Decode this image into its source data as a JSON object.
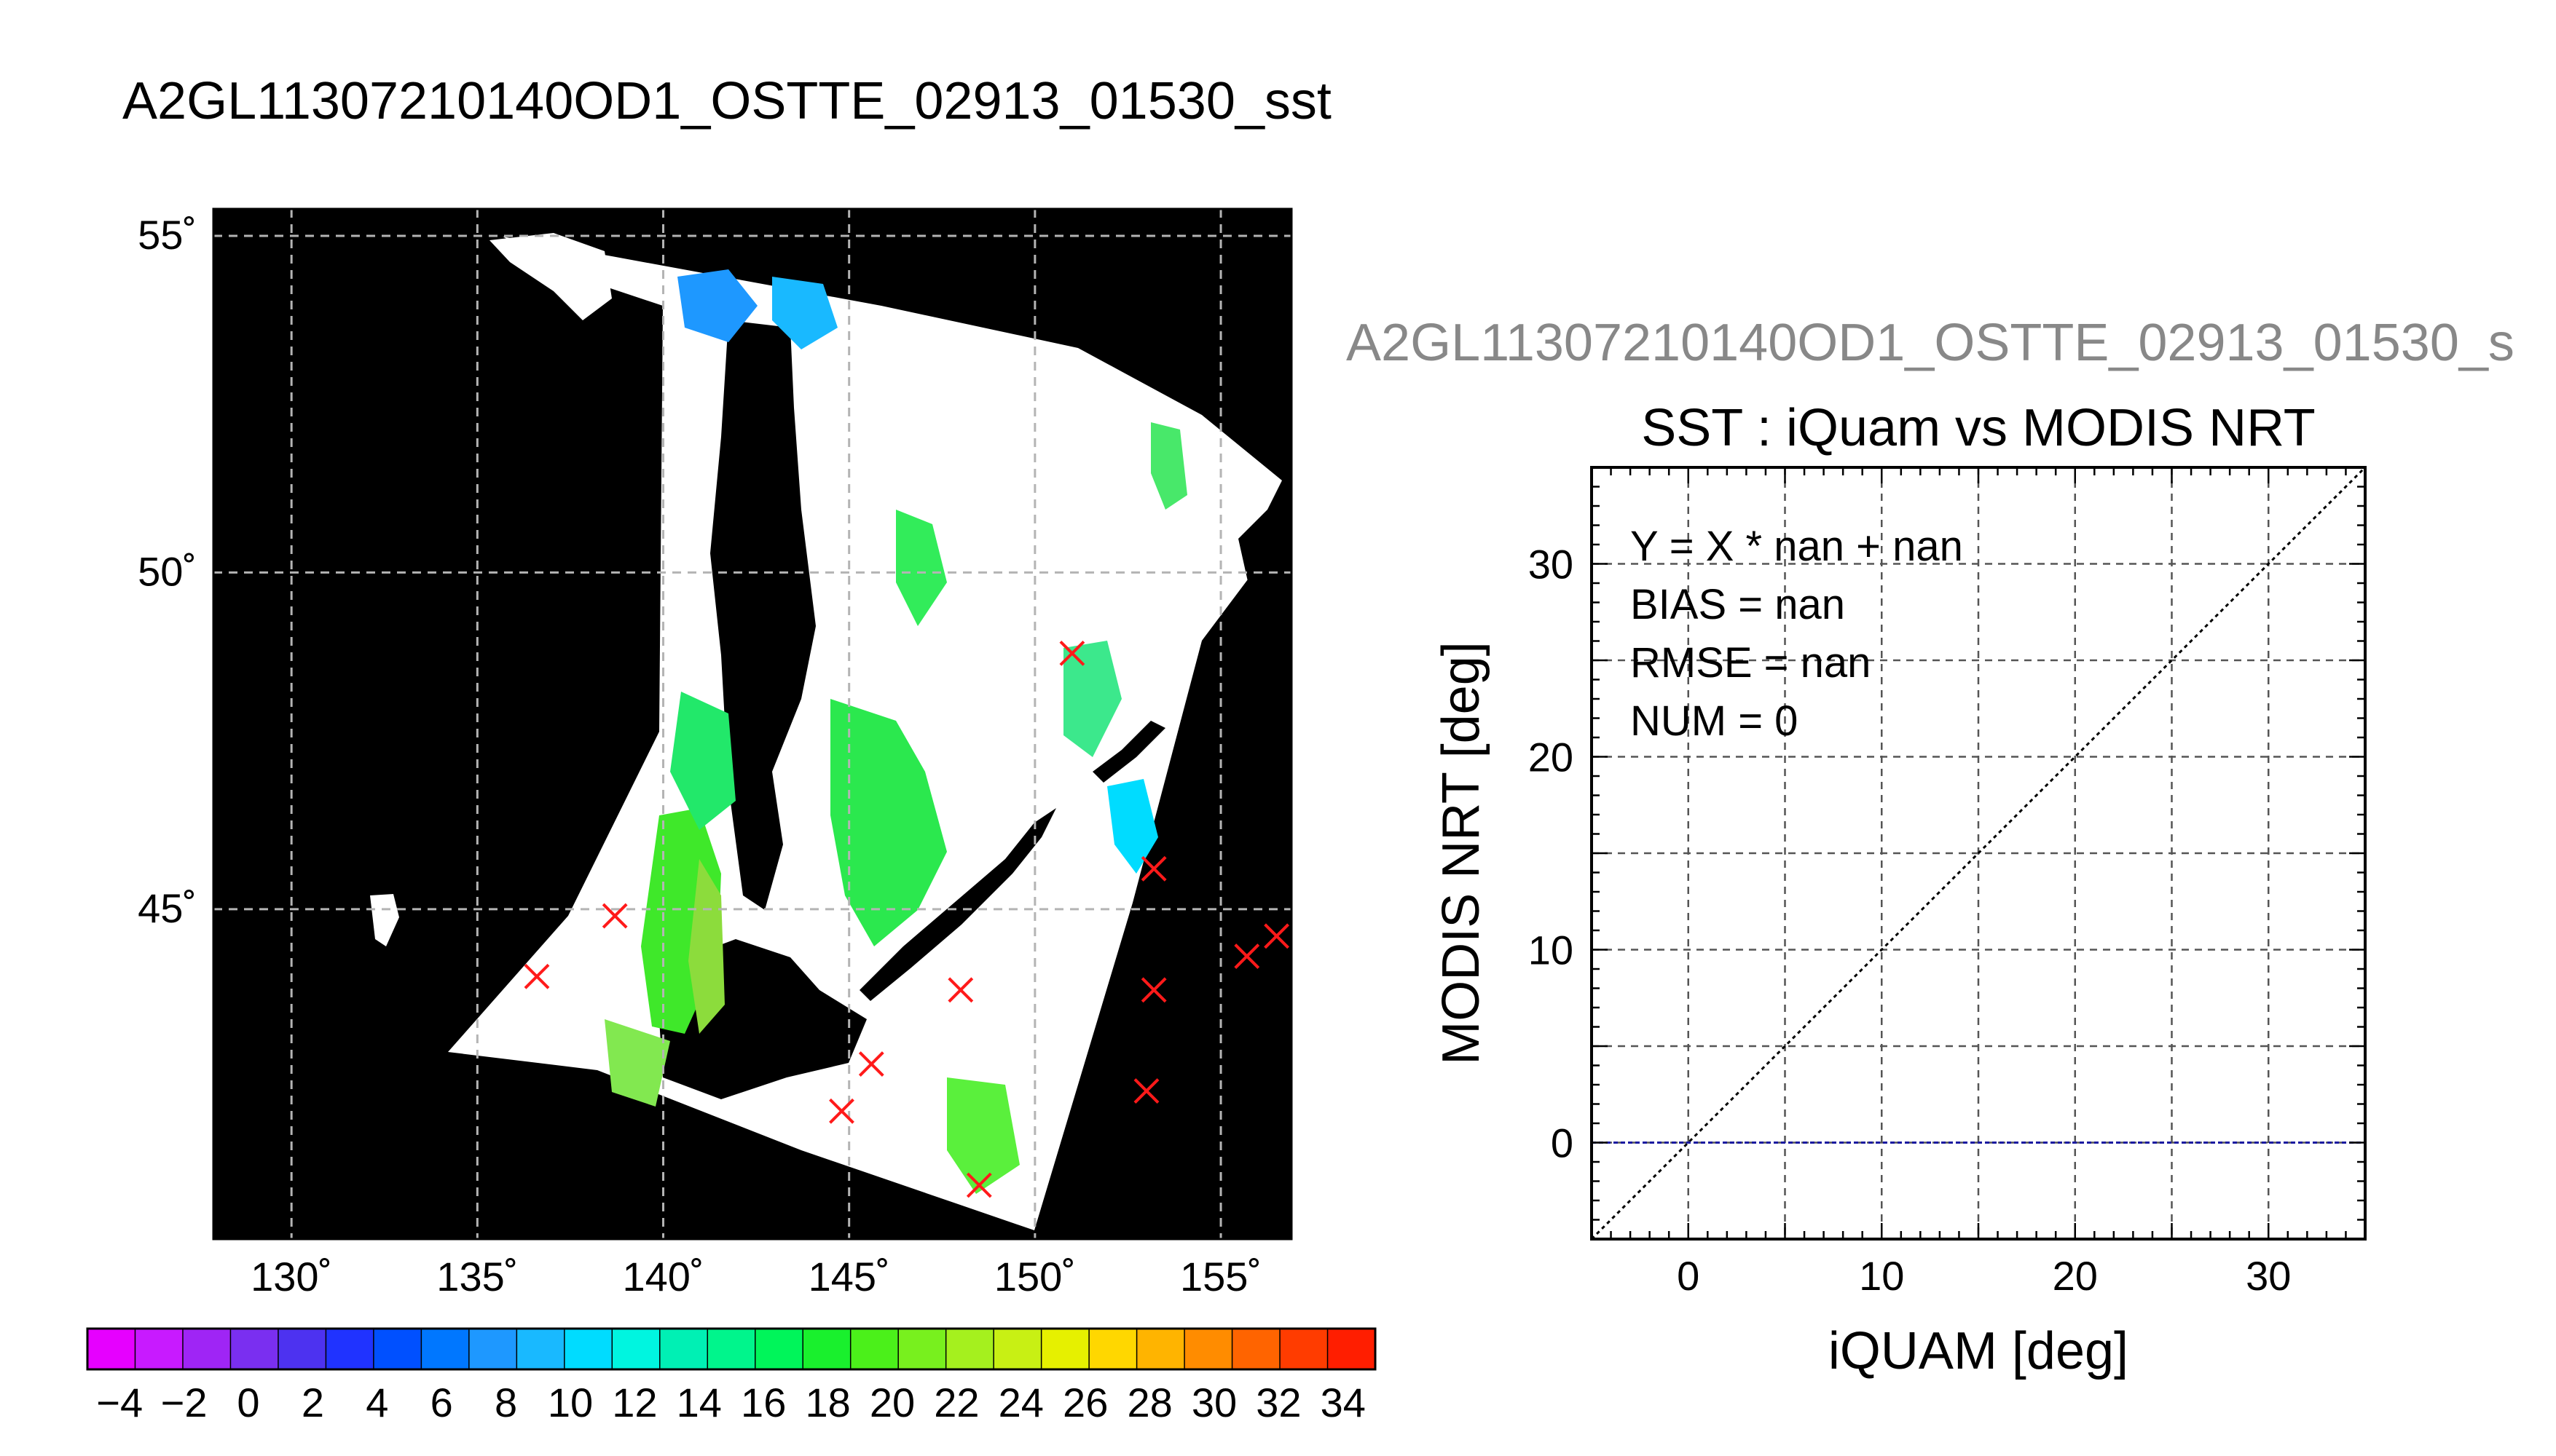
{
  "page_title": "A2GL11307210140OD1_OSTTE_02913_01530_sst",
  "chart_data": [
    {
      "type": "heatmap",
      "title": "A2GL11307210140OD1_OSTTE_02913_01530_sst",
      "xlabel": "",
      "ylabel": "",
      "lon_ticks": [
        "130˚",
        "135˚",
        "140˚",
        "145˚",
        "150˚",
        "155˚"
      ],
      "lon_values": [
        130,
        135,
        140,
        145,
        150,
        155
      ],
      "lat_ticks": [
        "55˚",
        "50˚",
        "45˚"
      ],
      "lat_values": [
        55,
        50,
        45
      ],
      "xlim": [
        127.9,
        156.9
      ],
      "ylim": [
        40.1,
        55.4
      ],
      "grid": true,
      "colorbar": {
        "min": -5,
        "max": 35,
        "tick_labels": [
          "−4",
          "−2",
          "0",
          "2",
          "4",
          "6",
          "8",
          "10",
          "12",
          "14",
          "16",
          "18",
          "20",
          "22",
          "24",
          "26",
          "28",
          "30",
          "32",
          "34"
        ],
        "tick_values": [
          -4,
          -2,
          0,
          2,
          4,
          6,
          8,
          10,
          12,
          14,
          16,
          18,
          20,
          22,
          24,
          26,
          28,
          30,
          32,
          34
        ],
        "colors": [
          "#e600ff",
          "#c81aff",
          "#9f25f5",
          "#7a2ff0",
          "#4d32f0",
          "#2033ff",
          "#0050ff",
          "#0077ff",
          "#1e98ff",
          "#19b9ff",
          "#00dcff",
          "#00f5e0",
          "#00f0b4",
          "#00f58c",
          "#00f55a",
          "#19f02d",
          "#4bf01a",
          "#78f01e",
          "#a5f01e",
          "#c8f014",
          "#e6f000",
          "#ffd700",
          "#ffb400",
          "#ff8c00",
          "#ff6400",
          "#ff3c00",
          "#ff1e00"
        ]
      },
      "markers": [
        {
          "lon": 136.6,
          "lat": 44.0
        },
        {
          "lon": 138.7,
          "lat": 44.9
        },
        {
          "lon": 148.0,
          "lat": 43.8
        },
        {
          "lon": 145.6,
          "lat": 42.7
        },
        {
          "lon": 144.8,
          "lat": 42.0
        },
        {
          "lon": 148.5,
          "lat": 40.9
        },
        {
          "lon": 151.0,
          "lat": 48.8
        },
        {
          "lon": 153.2,
          "lat": 45.6
        },
        {
          "lon": 153.2,
          "lat": 43.8
        },
        {
          "lon": 153.0,
          "lat": 42.3
        },
        {
          "lon": 155.7,
          "lat": 44.3
        },
        {
          "lon": 156.5,
          "lat": 44.6
        }
      ]
    },
    {
      "type": "scatter",
      "subtitle": "A2GL11307210140OD1_OSTTE_02913_01530_s",
      "title": "SST : iQuam vs MODIS NRT",
      "xlabel": "iQUAM [deg]",
      "ylabel": "MODIS NRT [deg]",
      "xlim": [
        -5,
        35
      ],
      "ylim": [
        -5,
        35
      ],
      "x_ticks": [
        "0",
        "10",
        "20",
        "30"
      ],
      "x_tick_values": [
        0,
        10,
        20,
        30
      ],
      "y_ticks": [
        "0",
        "10",
        "20",
        "30"
      ],
      "y_tick_values": [
        0,
        10,
        20,
        30
      ],
      "grid": true,
      "annotations": [
        "Y = X * nan + nan",
        "BIAS = nan",
        "RMSE = nan",
        "NUM = 0"
      ],
      "points": [],
      "reference_lines": [
        {
          "kind": "identity",
          "style": "dotted",
          "color": "#000000"
        },
        {
          "kind": "horizontal",
          "y": 0,
          "style": "dashed",
          "color": "#1a1aa0"
        }
      ]
    }
  ]
}
